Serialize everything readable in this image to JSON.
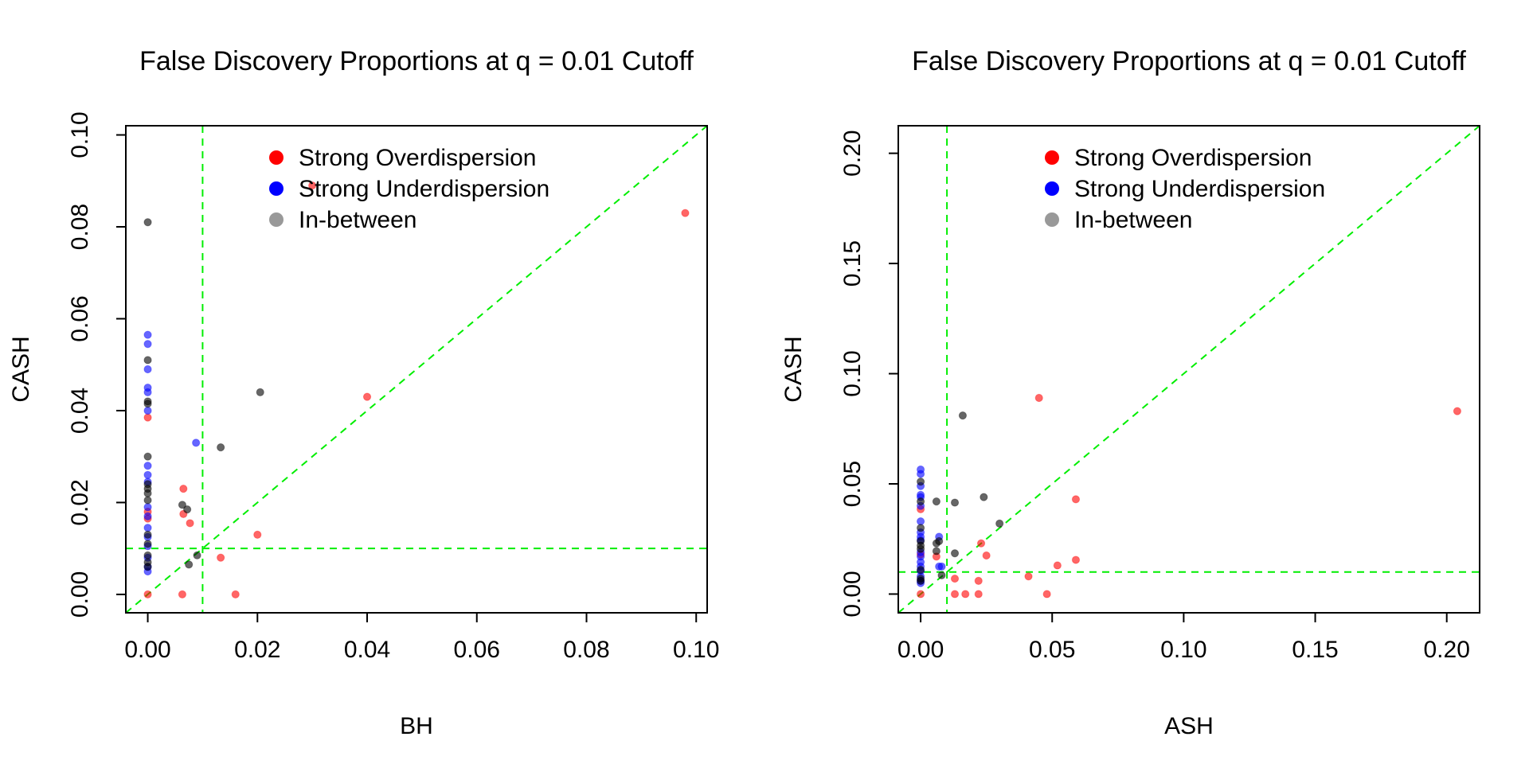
{
  "colors": {
    "overdispersion": "#ff0000",
    "underdispersion": "#0000ff",
    "in_between": "#000000",
    "legend_in_between": "#999999",
    "reference_lines": "#00ee00",
    "axes": "#000000"
  },
  "chart_data": [
    {
      "type": "scatter",
      "title": "False Discovery Proportions at q = 0.01 Cutoff",
      "xlabel": "BH",
      "ylabel": "CASH",
      "xlim": [
        -0.004,
        0.102
      ],
      "ylim": [
        -0.004,
        0.102
      ],
      "x_ticks": [
        0.0,
        0.02,
        0.04,
        0.06,
        0.08,
        0.1
      ],
      "x_tick_labels": [
        "0.00",
        "0.02",
        "0.04",
        "0.06",
        "0.08",
        "0.10"
      ],
      "y_ticks": [
        0.0,
        0.02,
        0.04,
        0.06,
        0.08,
        0.1
      ],
      "y_tick_labels": [
        "0.00",
        "0.02",
        "0.04",
        "0.06",
        "0.08",
        "0.10"
      ],
      "grid": false,
      "reference_lines": {
        "vertical": 0.01,
        "horizontal": 0.01,
        "diagonal": true
      },
      "legend": {
        "position": "top",
        "entries": [
          "Strong Overdispersion",
          "Strong Underdispersion",
          "In-between"
        ]
      },
      "series": [
        {
          "name": "Strong Overdispersion",
          "points": [
            [
              0.098,
              0.083
            ],
            [
              0.04,
              0.043
            ],
            [
              0.03,
              0.089
            ],
            [
              0.0065,
              0.023
            ],
            [
              0.0065,
              0.0175
            ],
            [
              0.0077,
              0.0155
            ],
            [
              0.02,
              0.013
            ],
            [
              0.0133,
              0.008
            ],
            [
              0.0063,
              0.0
            ],
            [
              0.016,
              0.0
            ],
            [
              0.0,
              0.0385
            ],
            [
              0.0,
              0.018
            ],
            [
              0.0,
              0.0165
            ],
            [
              0.0,
              0.0
            ]
          ]
        },
        {
          "name": "Strong Underdispersion",
          "points": [
            [
              0.0,
              0.0565
            ],
            [
              0.0,
              0.0545
            ],
            [
              0.0,
              0.049
            ],
            [
              0.0,
              0.045
            ],
            [
              0.0,
              0.044
            ],
            [
              0.0,
              0.04
            ],
            [
              0.0,
              0.028
            ],
            [
              0.0,
              0.026
            ],
            [
              0.0,
              0.0245
            ],
            [
              0.0,
              0.019
            ],
            [
              0.0,
              0.017
            ],
            [
              0.0,
              0.0145
            ],
            [
              0.0,
              0.0125
            ],
            [
              0.0,
              0.0105
            ],
            [
              0.0,
              0.008
            ],
            [
              0.0,
              0.006
            ],
            [
              0.0,
              0.005
            ],
            [
              0.0088,
              0.033
            ]
          ]
        },
        {
          "name": "In-between",
          "points": [
            [
              0.0,
              0.081
            ],
            [
              0.0,
              0.051
            ],
            [
              0.0,
              0.042
            ],
            [
              0.0,
              0.0415
            ],
            [
              0.0,
              0.03
            ],
            [
              0.0,
              0.024
            ],
            [
              0.0,
              0.023
            ],
            [
              0.0,
              0.022
            ],
            [
              0.0,
              0.0205
            ],
            [
              0.0,
              0.013
            ],
            [
              0.0,
              0.011
            ],
            [
              0.0,
              0.0085
            ],
            [
              0.0,
              0.007
            ],
            [
              0.0,
              0.006
            ],
            [
              0.0205,
              0.044
            ],
            [
              0.0133,
              0.032
            ],
            [
              0.0063,
              0.0195
            ],
            [
              0.0072,
              0.0185
            ],
            [
              0.009,
              0.0085
            ],
            [
              0.0075,
              0.0065
            ]
          ]
        }
      ]
    },
    {
      "type": "scatter",
      "title": "False Discovery Proportions at q = 0.01 Cutoff",
      "xlabel": "ASH",
      "ylabel": "CASH",
      "xlim": [
        -0.0085,
        0.2125
      ],
      "ylim": [
        -0.0085,
        0.2125
      ],
      "x_ticks": [
        0.0,
        0.05,
        0.1,
        0.15,
        0.2
      ],
      "x_tick_labels": [
        "0.00",
        "0.05",
        "0.10",
        "0.15",
        "0.20"
      ],
      "y_ticks": [
        0.0,
        0.05,
        0.1,
        0.15,
        0.2
      ],
      "y_tick_labels": [
        "0.00",
        "0.05",
        "0.10",
        "0.15",
        "0.20"
      ],
      "grid": false,
      "reference_lines": {
        "vertical": 0.01,
        "horizontal": 0.01,
        "diagonal": true
      },
      "legend": {
        "position": "top",
        "entries": [
          "Strong Overdispersion",
          "Strong Underdispersion",
          "In-between"
        ]
      },
      "series": [
        {
          "name": "Strong Overdispersion",
          "points": [
            [
              0.204,
              0.083
            ],
            [
              0.045,
              0.089
            ],
            [
              0.059,
              0.043
            ],
            [
              0.059,
              0.0155
            ],
            [
              0.052,
              0.013
            ],
            [
              0.041,
              0.008
            ],
            [
              0.025,
              0.0175
            ],
            [
              0.023,
              0.023
            ],
            [
              0.022,
              0.006
            ],
            [
              0.013,
              0.007
            ],
            [
              0.013,
              0.0
            ],
            [
              0.017,
              0.0
            ],
            [
              0.022,
              0.0
            ],
            [
              0.048,
              0.0
            ],
            [
              0.006,
              0.017
            ],
            [
              0.0,
              0.0385
            ],
            [
              0.0,
              0.018
            ],
            [
              0.0,
              0.0
            ]
          ]
        },
        {
          "name": "Strong Underdispersion",
          "points": [
            [
              0.0,
              0.0565
            ],
            [
              0.0,
              0.0545
            ],
            [
              0.0,
              0.049
            ],
            [
              0.0,
              0.045
            ],
            [
              0.0,
              0.044
            ],
            [
              0.0,
              0.04
            ],
            [
              0.0,
              0.033
            ],
            [
              0.0,
              0.028
            ],
            [
              0.0,
              0.026
            ],
            [
              0.0,
              0.0245
            ],
            [
              0.0,
              0.019
            ],
            [
              0.0,
              0.017
            ],
            [
              0.0,
              0.0145
            ],
            [
              0.0,
              0.0125
            ],
            [
              0.0,
              0.0105
            ],
            [
              0.0,
              0.008
            ],
            [
              0.0,
              0.006
            ],
            [
              0.0,
              0.005
            ],
            [
              0.007,
              0.026
            ],
            [
              0.007,
              0.0125
            ],
            [
              0.008,
              0.0125
            ]
          ]
        },
        {
          "name": "In-between",
          "points": [
            [
              0.016,
              0.081
            ],
            [
              0.0,
              0.051
            ],
            [
              0.0,
              0.042
            ],
            [
              0.006,
              0.042
            ],
            [
              0.013,
              0.0415
            ],
            [
              0.024,
              0.044
            ],
            [
              0.03,
              0.032
            ],
            [
              0.0,
              0.03
            ],
            [
              0.0,
              0.024
            ],
            [
              0.0,
              0.022
            ],
            [
              0.0,
              0.0205
            ],
            [
              0.006,
              0.023
            ],
            [
              0.007,
              0.024
            ],
            [
              0.013,
              0.0185
            ],
            [
              0.0,
              0.011
            ],
            [
              0.0,
              0.007
            ],
            [
              0.0,
              0.006
            ],
            [
              0.008,
              0.0085
            ],
            [
              0.006,
              0.0195
            ]
          ]
        }
      ]
    }
  ]
}
